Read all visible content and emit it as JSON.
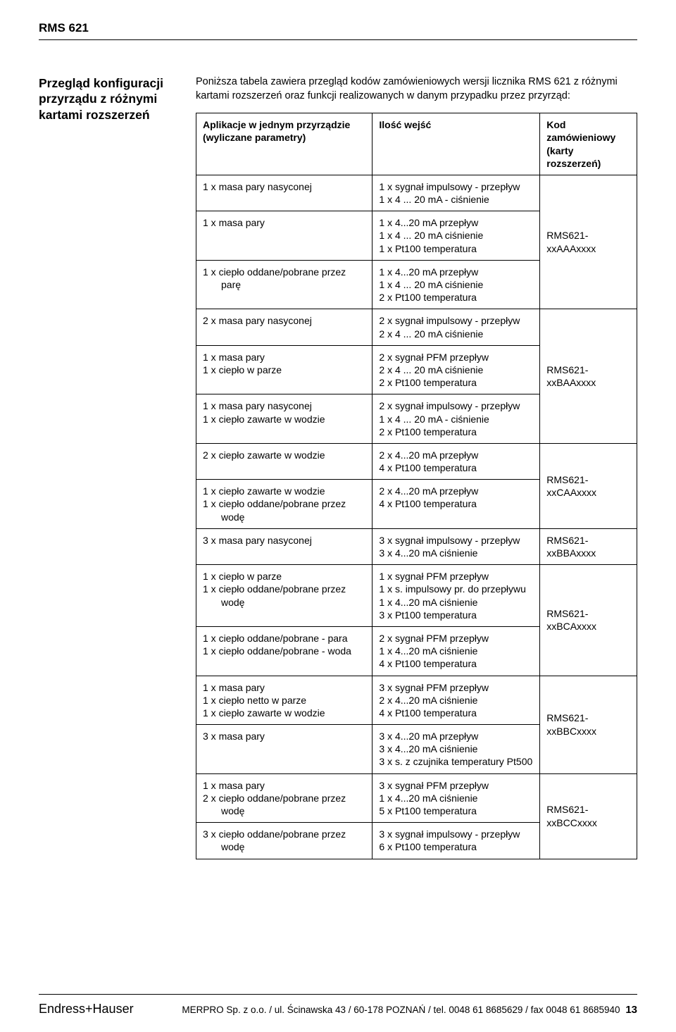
{
  "header": {
    "doc_title": "RMS 621"
  },
  "section": {
    "title_l1": "Przegląd konfiguracji",
    "title_l2": "przyrządu z różnymi",
    "title_l3": "kartami rozszerzeń",
    "intro": "Poniższa tabela zawiera przegląd kodów zamówieniowych wersji licznika RMS 621 z różnymi kartami rozszerzeń oraz funkcji realizowanych w danym przypadku przez przyrząd:"
  },
  "table": {
    "head": {
      "col1_l1": "Aplikacje w jednym przyrządzie",
      "col1_l2": "(wyliczane parametry)",
      "col2": "Ilość wejść",
      "col3_l1": "Kod zamówieniowy",
      "col3_l2": "(karty rozszerzeń)"
    },
    "rows": [
      {
        "app": "1 x masa pary nasyconej",
        "inputs": "1 x sygnał impulsowy - przepływ\n1 x 4 ... 20 mA - ciśnienie"
      },
      {
        "app": "1 x masa pary",
        "inputs": "1 x 4...20 mA przepływ\n1 x 4 ... 20 mA ciśnienie\n1 x Pt100 temperatura",
        "code": "RMS621-xxAAAxxxx"
      },
      {
        "app": "1 x ciepło oddane/pobrane przez\n    parę",
        "inputs": "1 x 4...20 mA przepływ\n1 x 4 ... 20 mA ciśnienie\n2 x Pt100 temperatura"
      },
      {
        "app": "2 x masa pary nasyconej",
        "inputs": "2 x sygnał impulsowy - przepływ\n2 x 4 ... 20 mA ciśnienie"
      },
      {
        "app": "1 x masa pary\n1 x ciepło w parze",
        "inputs": "2 x sygnał PFM przepływ\n2 x 4 ... 20 mA ciśnienie\n2 x Pt100 temperatura",
        "code": "RMS621-xxBAAxxxx"
      },
      {
        "app": "1 x masa pary nasyconej\n1 x ciepło zawarte w wodzie",
        "inputs": "2 x sygnał impulsowy - przepływ\n1 x 4 ... 20 mA - ciśnienie\n2 x Pt100 temperatura"
      },
      {
        "app": "2 x ciepło zawarte w wodzie",
        "inputs": "2 x 4...20 mA przepływ\n4 x Pt100 temperatura"
      },
      {
        "app": "1 x ciepło zawarte w wodzie\n1 x ciepło oddane/pobrane przez\n    wodę",
        "inputs": "2 x 4...20 mA przepływ\n4 x Pt100 temperatura",
        "code": "RMS621-xxCAAxxxx"
      },
      {
        "app": "3 x masa pary nasyconej",
        "inputs": "3 x sygnał impulsowy - przepływ\n3 x 4...20 mA ciśnienie",
        "code": "RMS621-xxBBAxxxx"
      },
      {
        "app": "1 x ciepło w parze\n1 x ciepło oddane/pobrane przez\n    wodę",
        "inputs": "1 x sygnał PFM przepływ\n1 x s. impulsowy pr. do przepływu\n1 x 4...20 mA ciśnienie\n3 x Pt100 temperatura"
      },
      {
        "app": "1 x ciepło oddane/pobrane - para\n1 x ciepło oddane/pobrane - woda",
        "inputs": "2 x sygnał PFM przepływ\n1 x 4...20 mA ciśnienie\n4 x Pt100 temperatura",
        "code": "RMS621-xxBCAxxxx"
      },
      {
        "app": "1 x masa pary\n1 x ciepło netto w parze\n1 x ciepło zawarte w wodzie",
        "inputs": "3 x sygnał PFM przepływ\n2 x 4...20 mA ciśnienie\n4 x Pt100 temperatura"
      },
      {
        "app": "3 x masa pary",
        "inputs": "3 x 4...20 mA przepływ\n3 x 4...20 mA ciśnienie\n3 x s. z czujnika temperatury Pt500",
        "code": "RMS621-xxBBCxxxx"
      },
      {
        "app": "1 x masa pary\n2 x ciepło oddane/pobrane przez\n    wodę",
        "inputs": "3 x sygnał PFM przepływ\n1 x 4...20 mA ciśnienie\n5 x Pt100 temperatura"
      },
      {
        "app": "3 x ciepło oddane/pobrane przez\n    wodę",
        "inputs": "3 x sygnał impulsowy - przepływ\n6 x Pt100 temperatura",
        "code": "RMS621-xxBCCxxxx"
      }
    ]
  },
  "footer": {
    "brand": "Endress+Hauser",
    "center": "MERPRO Sp. z o.o.  /  ul. Ścinawska 43  /  60-178 POZNAŃ  /  tel. 0048  61 8685629  /  fax 0048  61 8685940",
    "page_no": "13"
  }
}
